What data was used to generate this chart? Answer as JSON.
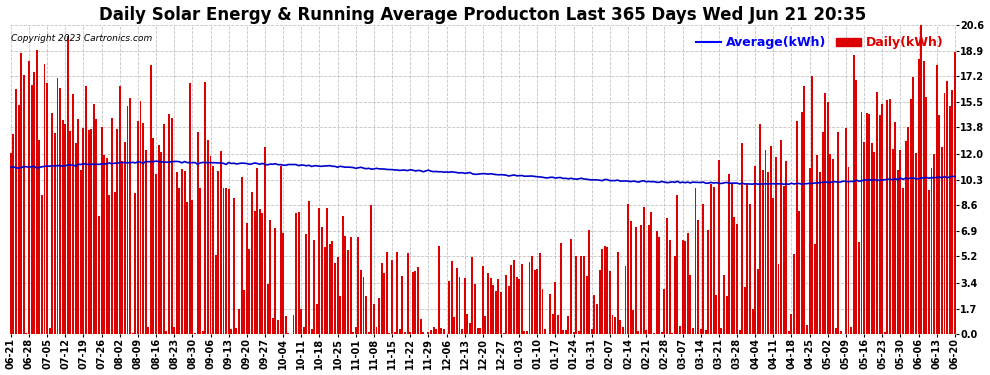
{
  "title": "Daily Solar Energy & Running Average Producton Last 365 Days Wed Jun 21 20:35",
  "copyright": "Copyright 2023 Cartronics.com",
  "ylabel_avg": "Average(kWh)",
  "ylabel_daily": "Daily(kWh)",
  "bar_color": "#dd0000",
  "line_color": "#0000cc",
  "avg_color": "#0000ff",
  "daily_color": "#dd0000",
  "background_color": "#ffffff",
  "grid_color": "#aaaaaa",
  "ylim": [
    0.0,
    20.6
  ],
  "yticks": [
    0.0,
    1.7,
    3.4,
    5.2,
    6.9,
    8.6,
    10.3,
    12.0,
    13.8,
    15.5,
    17.2,
    18.9,
    20.6
  ],
  "n_days": 365,
  "start_date": "2022-06-21",
  "title_fontsize": 12,
  "tick_fontsize": 7,
  "legend_fontsize": 9
}
